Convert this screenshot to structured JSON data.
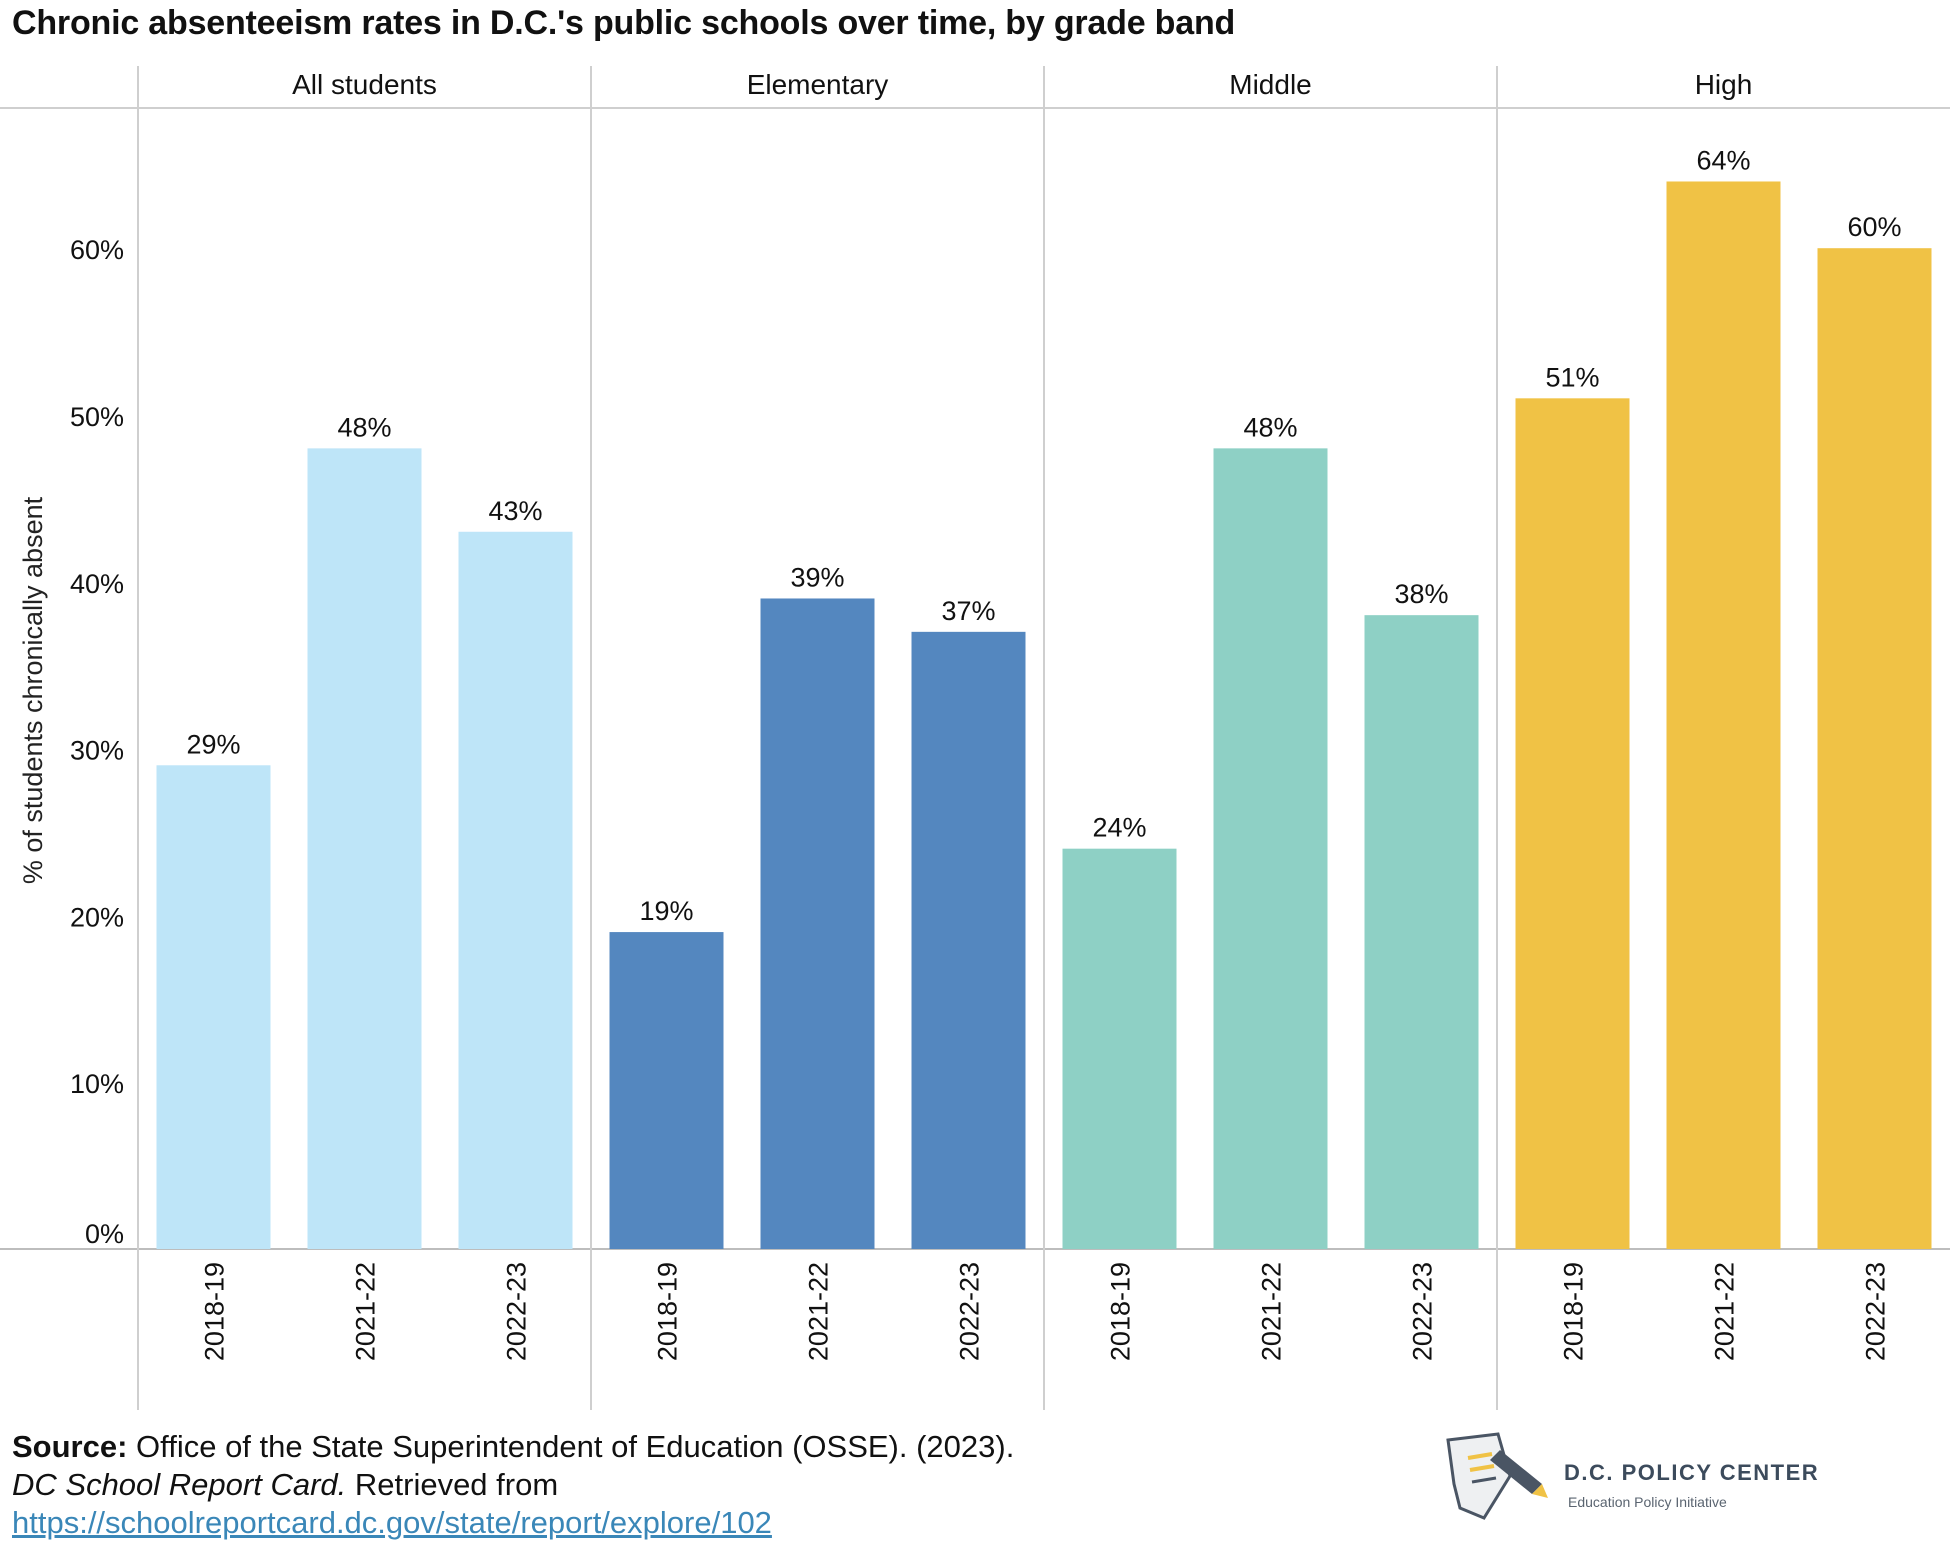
{
  "title": "Chronic absenteeism rates in D.C.'s public schools over time, by grade band",
  "chart_data": {
    "type": "bar",
    "title": "Chronic absenteeism rates in D.C.'s public schools over time, by grade band",
    "ylabel": "% of students chronically absent",
    "xlabel": "",
    "ylim": [
      0,
      68
    ],
    "yticks": [
      0,
      10,
      20,
      30,
      40,
      50,
      60
    ],
    "ytick_labels": [
      "0%",
      "10%",
      "20%",
      "30%",
      "40%",
      "50%",
      "60%"
    ],
    "grid": false,
    "categories": [
      "2018-19",
      "2021-22",
      "2022-23"
    ],
    "panels": [
      {
        "name": "All students",
        "color": "#bee5f8",
        "values": [
          29,
          48,
          43
        ],
        "labels": [
          "29%",
          "48%",
          "43%"
        ]
      },
      {
        "name": "Elementary",
        "color": "#5487bf",
        "values": [
          19,
          39,
          37
        ],
        "labels": [
          "19%",
          "39%",
          "37%"
        ]
      },
      {
        "name": "Middle",
        "color": "#8ed0c5",
        "values": [
          24,
          48,
          38
        ],
        "labels": [
          "24%",
          "48%",
          "38%"
        ]
      },
      {
        "name": "High",
        "color": "#f0c245",
        "values": [
          51,
          64,
          60
        ],
        "labels": [
          "51%",
          "64%",
          "60%"
        ]
      }
    ]
  },
  "source": {
    "label": "Source:",
    "line1": "Office of the State Superintendent of Education (OSSE). (2023).",
    "italic": "DC School Report Card.",
    "line2_rest": "Retrieved from",
    "link": "https://schoolreportcard.dc.gov/state/report/explore/102"
  },
  "logo": {
    "org": "D.C. POLICY CENTER",
    "sub": "Education Policy Initiative",
    "icon": "dc-map-pencil-icon"
  }
}
